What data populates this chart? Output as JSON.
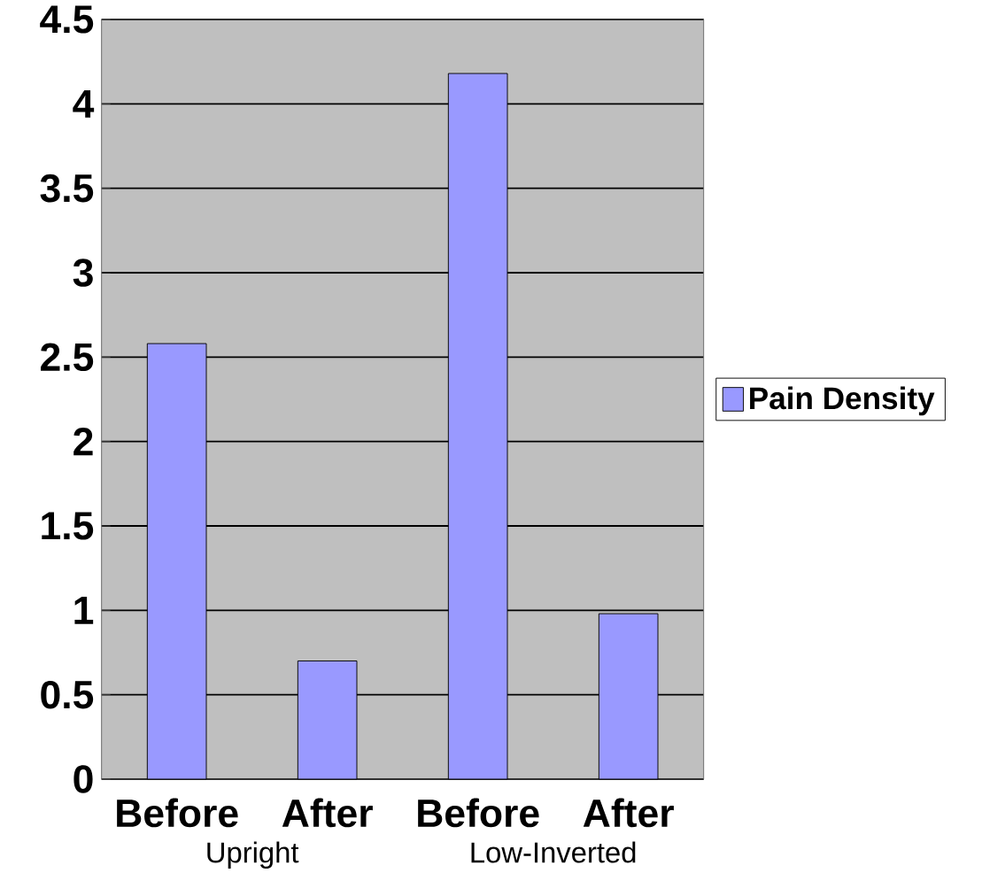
{
  "chart_data": {
    "type": "bar",
    "categories": [
      "Before",
      "After",
      "Before",
      "After"
    ],
    "series": [
      {
        "name": "Pain Density",
        "color": "#9999ff",
        "values": [
          2.58,
          0.7,
          4.18,
          0.98
        ]
      }
    ],
    "ylim": [
      0,
      4.5
    ],
    "yticks": [
      0,
      0.5,
      1,
      1.5,
      2,
      2.5,
      3,
      3.5,
      4,
      4.5
    ],
    "grid": "y",
    "legend": "right",
    "annotations": [
      "Upright",
      "Low-Inverted"
    ]
  }
}
